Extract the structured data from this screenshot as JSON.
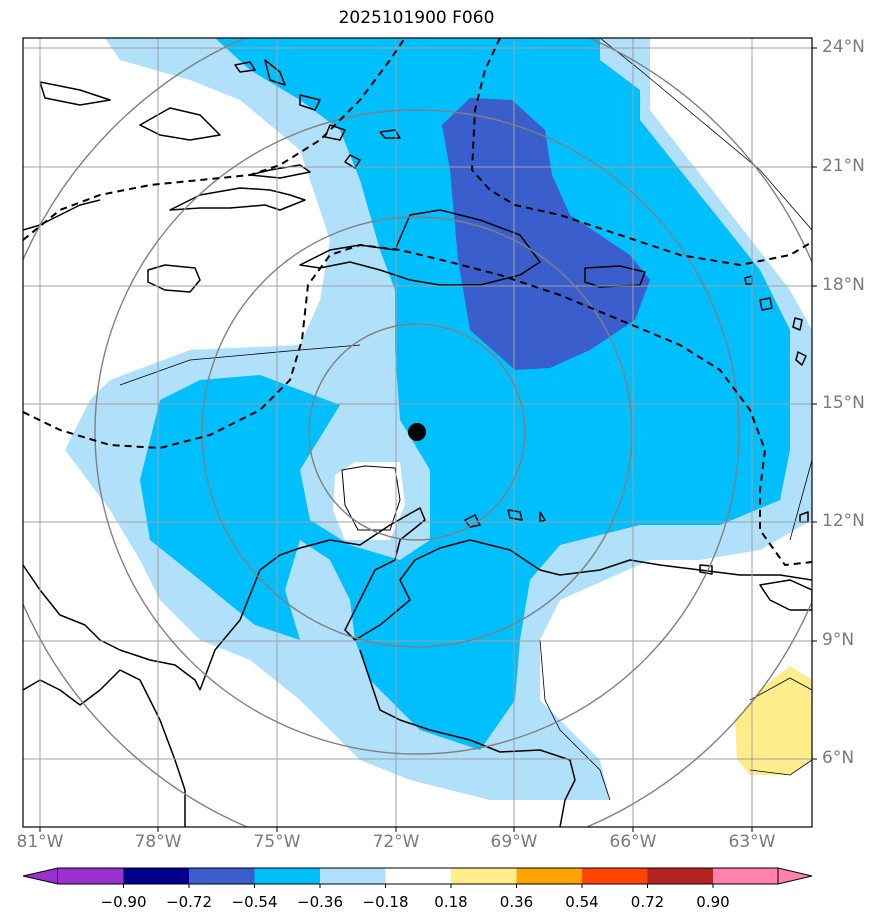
{
  "title": "2025101900 F060",
  "lat_labels": [
    "24°N",
    "21°N",
    "18°N",
    "15°N",
    "12°N",
    "9°N",
    "6°N"
  ],
  "lon_labels": [
    "81°W",
    "78°W",
    "75°W",
    "72°W",
    "69°W",
    "66°W",
    "63°W"
  ],
  "colorbar": {
    "ticks": [
      "−0.90",
      "−0.72",
      "−0.54",
      "−0.36",
      "−0.18",
      "0.18",
      "0.36",
      "0.54",
      "0.72",
      "0.90"
    ],
    "bins": [
      "#9b30d0",
      "#00008b",
      "#3a5fcd",
      "#00bfff",
      "#b0e0fa",
      "#ffffff",
      "#ffec8b",
      "#ffa500",
      "#ff4500",
      "#b22222",
      "#ff82ab"
    ]
  },
  "colors": {
    "shade_0_18_to_0_36": "#b0e0fa",
    "shade_0_36_to_0_54": "#00bfff",
    "shade_0_54_to_0_72": "#3a5fcd",
    "shade_pos_0_18_to_0_36": "#ffec8b",
    "gridline": "#a0a0a0",
    "range_ring": "#808080"
  },
  "center_marker": {
    "lat": 14.3,
    "lon": -71.5
  }
}
